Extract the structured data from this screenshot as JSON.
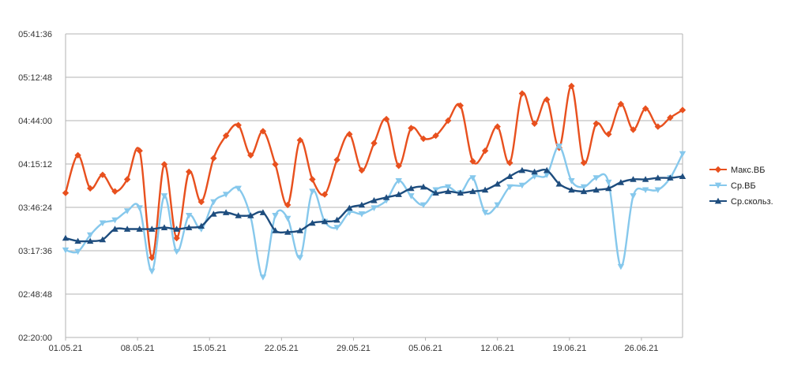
{
  "chart_data": {
    "type": "line",
    "title": "",
    "xlabel": "",
    "ylabel": "",
    "x_start": "2021-05-01",
    "x_end": "2021-06-30",
    "x_ticks": [
      "01.05.21",
      "08.05.21",
      "15.05.21",
      "22.05.21",
      "29.05.21",
      "05.06.21",
      "12.06.21",
      "19.06.21",
      "26.06.21"
    ],
    "y_ticks": [
      "02:20:00",
      "02:48:48",
      "03:17:36",
      "03:46:24",
      "04:15:12",
      "04:44:00",
      "05:12:48",
      "05:41:36"
    ],
    "ylim": [
      "02:20:00",
      "05:41:36"
    ],
    "grid": "horizontal",
    "legend_position": "right",
    "series": [
      {
        "name": "Макс.ВБ",
        "color": "#e8501e",
        "marker": "diamond",
        "values": [
          "03:56",
          "04:21",
          "03:59",
          "04:08",
          "03:57",
          "04:05",
          "04:24",
          "03:13",
          "04:15",
          "03:26",
          "04:10",
          "03:50",
          "04:19",
          "04:34",
          "04:41",
          "04:21",
          "04:37",
          "04:15",
          "03:48",
          "04:31",
          "04:05",
          "03:55",
          "04:18",
          "04:35",
          "04:11",
          "04:29",
          "04:45",
          "04:14",
          "04:39",
          "04:32",
          "04:34",
          "04:44",
          "04:54",
          "04:17",
          "04:24",
          "04:40",
          "04:16",
          "05:02",
          "04:42",
          "04:58",
          "04:26",
          "05:07",
          "04:16",
          "04:42",
          "04:35",
          "04:55",
          "04:38",
          "04:52",
          "04:40",
          "04:46",
          "04:51"
        ]
      },
      {
        "name": "Ср.ВБ",
        "color": "#86c8ec",
        "marker": "triangle-down",
        "values": [
          "03:18",
          "03:17",
          "03:28",
          "03:36",
          "03:38",
          "03:44",
          "03:46",
          "03:04",
          "03:54",
          "03:17",
          "03:41",
          "03:32",
          "03:50",
          "03:55",
          "03:59",
          "03:40",
          "03:00",
          "03:41",
          "03:39",
          "03:13",
          "03:57",
          "03:37",
          "03:33",
          "03:43",
          "03:42",
          "03:46",
          "03:51",
          "04:04",
          "03:54",
          "03:48",
          "03:58",
          "04:00",
          "03:56",
          "04:06",
          "03:43",
          "03:48",
          "04:00",
          "04:01",
          "04:07",
          "04:08",
          "04:27",
          "04:04",
          "04:00",
          "04:06",
          "04:03",
          "03:07",
          "03:54",
          "03:58",
          "03:58",
          "04:06",
          "04:22"
        ]
      },
      {
        "name": "Ср.скольз.",
        "color": "#1e4d7e",
        "marker": "triangle-up",
        "values": [
          "03:26",
          "03:24",
          "03:24",
          "03:25",
          "03:32",
          "03:32",
          "03:32",
          "03:32",
          "03:33",
          "03:32",
          "03:33",
          "03:34",
          "03:42",
          "03:43",
          "03:41",
          "03:41",
          "03:43",
          "03:31",
          "03:30",
          "03:31",
          "03:36",
          "03:37",
          "03:38",
          "03:46",
          "03:48",
          "03:51",
          "03:53",
          "03:55",
          "03:59",
          "04:00",
          "03:56",
          "03:57",
          "03:56",
          "03:57",
          "03:58",
          "04:02",
          "04:07",
          "04:11",
          "04:10",
          "04:11",
          "04:02",
          "03:58",
          "03:57",
          "03:58",
          "03:59",
          "04:03",
          "04:05",
          "04:05",
          "04:06",
          "04:06",
          "04:07"
        ]
      }
    ]
  }
}
